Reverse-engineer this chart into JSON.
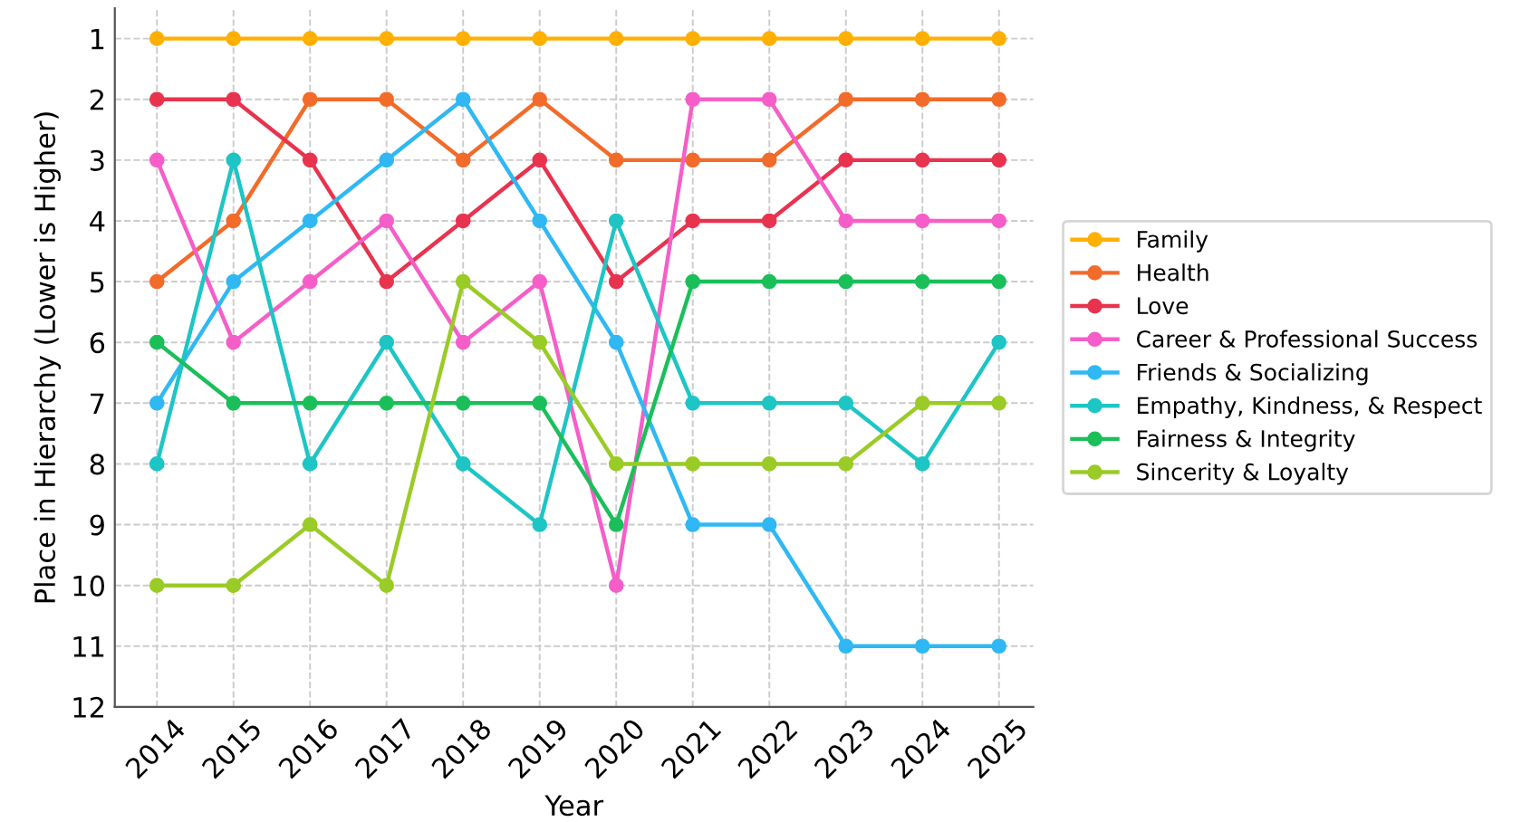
{
  "chart_data": {
    "type": "line",
    "xlabel": "Year",
    "ylabel": "Place in Hierarchy (Lower is Higher)",
    "x": [
      2014,
      2015,
      2016,
      2017,
      2018,
      2019,
      2020,
      2021,
      2022,
      2023,
      2024,
      2025
    ],
    "xlim": [
      2013.45,
      2025.45
    ],
    "xticks": [
      2014,
      2015,
      2016,
      2017,
      2018,
      2019,
      2020,
      2021,
      2022,
      2023,
      2024,
      2025
    ],
    "ylim": [
      12,
      0.5
    ],
    "yticks": [
      1,
      2,
      3,
      4,
      5,
      6,
      7,
      8,
      9,
      10,
      11,
      12
    ],
    "grid": true,
    "legend": "right",
    "marker": "circle",
    "line_style": "solid",
    "series": [
      {
        "name": "Family",
        "color": "#ffb000",
        "values": [
          1,
          1,
          1,
          1,
          1,
          1,
          1,
          1,
          1,
          1,
          1,
          1
        ]
      },
      {
        "name": "Health",
        "color": "#f26b2a",
        "values": [
          5,
          4,
          2,
          2,
          3,
          2,
          3,
          3,
          3,
          2,
          2,
          2
        ]
      },
      {
        "name": "Love",
        "color": "#e8334f",
        "values": [
          2,
          2,
          3,
          5,
          4,
          3,
          5,
          4,
          4,
          3,
          3,
          3
        ]
      },
      {
        "name": "Career & Professional Success",
        "color": "#f55ec8",
        "values": [
          3,
          6,
          5,
          4,
          6,
          5,
          10,
          2,
          2,
          4,
          4,
          4
        ]
      },
      {
        "name": "Friends & Socializing",
        "color": "#2fb8f3",
        "values": [
          7,
          5,
          4,
          3,
          2,
          4,
          6,
          9,
          9,
          11,
          11,
          11
        ]
      },
      {
        "name": "Empathy, Kindness, & Respect",
        "color": "#1ec5c5",
        "values": [
          8,
          3,
          8,
          6,
          8,
          9,
          4,
          7,
          7,
          7,
          8,
          6
        ]
      },
      {
        "name": "Fairness & Integrity",
        "color": "#1bbf5a",
        "values": [
          6,
          7,
          7,
          7,
          7,
          7,
          9,
          5,
          5,
          5,
          5,
          5
        ]
      },
      {
        "name": "Sincerity & Loyalty",
        "color": "#9acb26",
        "values": [
          10,
          10,
          9,
          10,
          5,
          6,
          8,
          8,
          8,
          8,
          7,
          7
        ]
      }
    ]
  }
}
